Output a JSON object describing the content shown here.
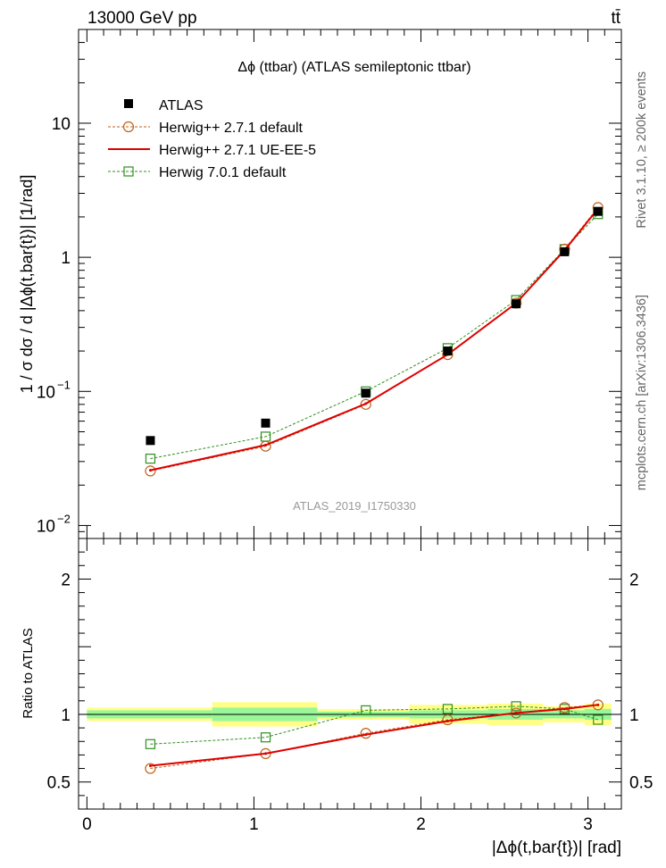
{
  "header": {
    "left": "13000 GeV pp",
    "right": "tt̄"
  },
  "side_labels": {
    "rivet": "Rivet 3.1.10, ≥ 200k events",
    "mcplots": "mcplots.cern.ch [arXiv:1306.3436]"
  },
  "colors": {
    "data": "#000000",
    "herwigpp_default": "#c0601a",
    "herwigpp_ueee5": "#dd0000",
    "herwig7_default": "#2f8f1f",
    "band_inner": "#99f799",
    "band_outer": "#ffff88"
  },
  "chart_data": [
    {
      "type": "scatter",
      "panel": "main",
      "title": "Δϕ (ttbar) (ATLAS semileptonic ttbar)",
      "ylabel": "1 / σ dσ / d |Δϕ(t,bar{t})| [1/rad]",
      "yscale": "log",
      "ylim": [
        0.008,
        50
      ],
      "xlim": [
        -0.05,
        3.2
      ],
      "ytick_labels": [
        {
          "value": 0.01,
          "label": "10",
          "sup": "−2"
        },
        {
          "value": 0.1,
          "label": "10",
          "sup": "−1"
        },
        {
          "value": 1,
          "label": "1",
          "sup": ""
        },
        {
          "value": 10,
          "label": "10",
          "sup": ""
        }
      ],
      "watermark": "ATLAS_2019_I1750330",
      "x": [
        0.38,
        1.07,
        1.67,
        2.16,
        2.57,
        2.86,
        3.06
      ],
      "series": [
        {
          "name": "ATLAS",
          "key": "data",
          "values": [
            0.043,
            0.058,
            0.097,
            0.2,
            0.45,
            1.1,
            2.2
          ]
        },
        {
          "name": "Herwig++ 2.7.1 default",
          "key": "herwigpp_default",
          "values": [
            0.0255,
            0.039,
            0.08,
            0.188,
            0.455,
            1.15,
            2.35
          ]
        },
        {
          "name": "Herwig++ 2.7.1 UE-EE-5",
          "key": "herwigpp_ueee5",
          "values": [
            0.0258,
            0.0398,
            0.081,
            0.188,
            0.455,
            1.13,
            2.3
          ]
        },
        {
          "name": "Herwig 7.0.1 default",
          "key": "herwig7_default",
          "values": [
            0.0315,
            0.046,
            0.1,
            0.21,
            0.48,
            1.15,
            2.1
          ]
        }
      ]
    },
    {
      "type": "line",
      "panel": "ratio",
      "ylabel": "Ratio to ATLAS",
      "xlabel": "|Δϕ(t,bar{t})| [rad]",
      "ylim": [
        0.3,
        2.3
      ],
      "xlim": [
        -0.05,
        3.2
      ],
      "ytick_labels": [
        {
          "value": 0.5,
          "label": "0.5"
        },
        {
          "value": 1,
          "label": "1"
        },
        {
          "value": 2,
          "label": "2"
        }
      ],
      "xtick_labels": [
        "0",
        "1",
        "2",
        "3"
      ],
      "x": [
        0.38,
        1.07,
        1.67,
        2.16,
        2.57,
        2.86,
        3.06
      ],
      "bins": [
        {
          "lo": 0.0,
          "hi": 0.75,
          "inner": 0.03,
          "outer": 0.05
        },
        {
          "lo": 0.75,
          "hi": 1.38,
          "inner": 0.05,
          "outer": 0.09
        },
        {
          "lo": 1.38,
          "hi": 1.93,
          "inner": 0.02,
          "outer": 0.04
        },
        {
          "lo": 1.93,
          "hi": 2.4,
          "inner": 0.03,
          "outer": 0.07
        },
        {
          "lo": 2.4,
          "hi": 2.73,
          "inner": 0.04,
          "outer": 0.08
        },
        {
          "lo": 2.73,
          "hi": 2.98,
          "inner": 0.03,
          "outer": 0.06
        },
        {
          "lo": 2.98,
          "hi": 3.14,
          "inner": 0.04,
          "outer": 0.08
        }
      ],
      "series": [
        {
          "name": "Herwig++ 2.7.1 default",
          "key": "herwigpp_default",
          "values": [
            0.6,
            0.71,
            0.86,
            0.96,
            1.01,
            1.05,
            1.07
          ]
        },
        {
          "name": "Herwig++ 2.7.1 UE-EE-5",
          "key": "herwigpp_ueee5",
          "values": [
            0.62,
            0.71,
            0.85,
            0.95,
            1.01,
            1.04,
            1.07
          ]
        },
        {
          "name": "Herwig 7.0.1 default",
          "key": "herwig7_default",
          "values": [
            0.78,
            0.83,
            1.03,
            1.04,
            1.06,
            1.04,
            0.96
          ]
        }
      ]
    }
  ]
}
